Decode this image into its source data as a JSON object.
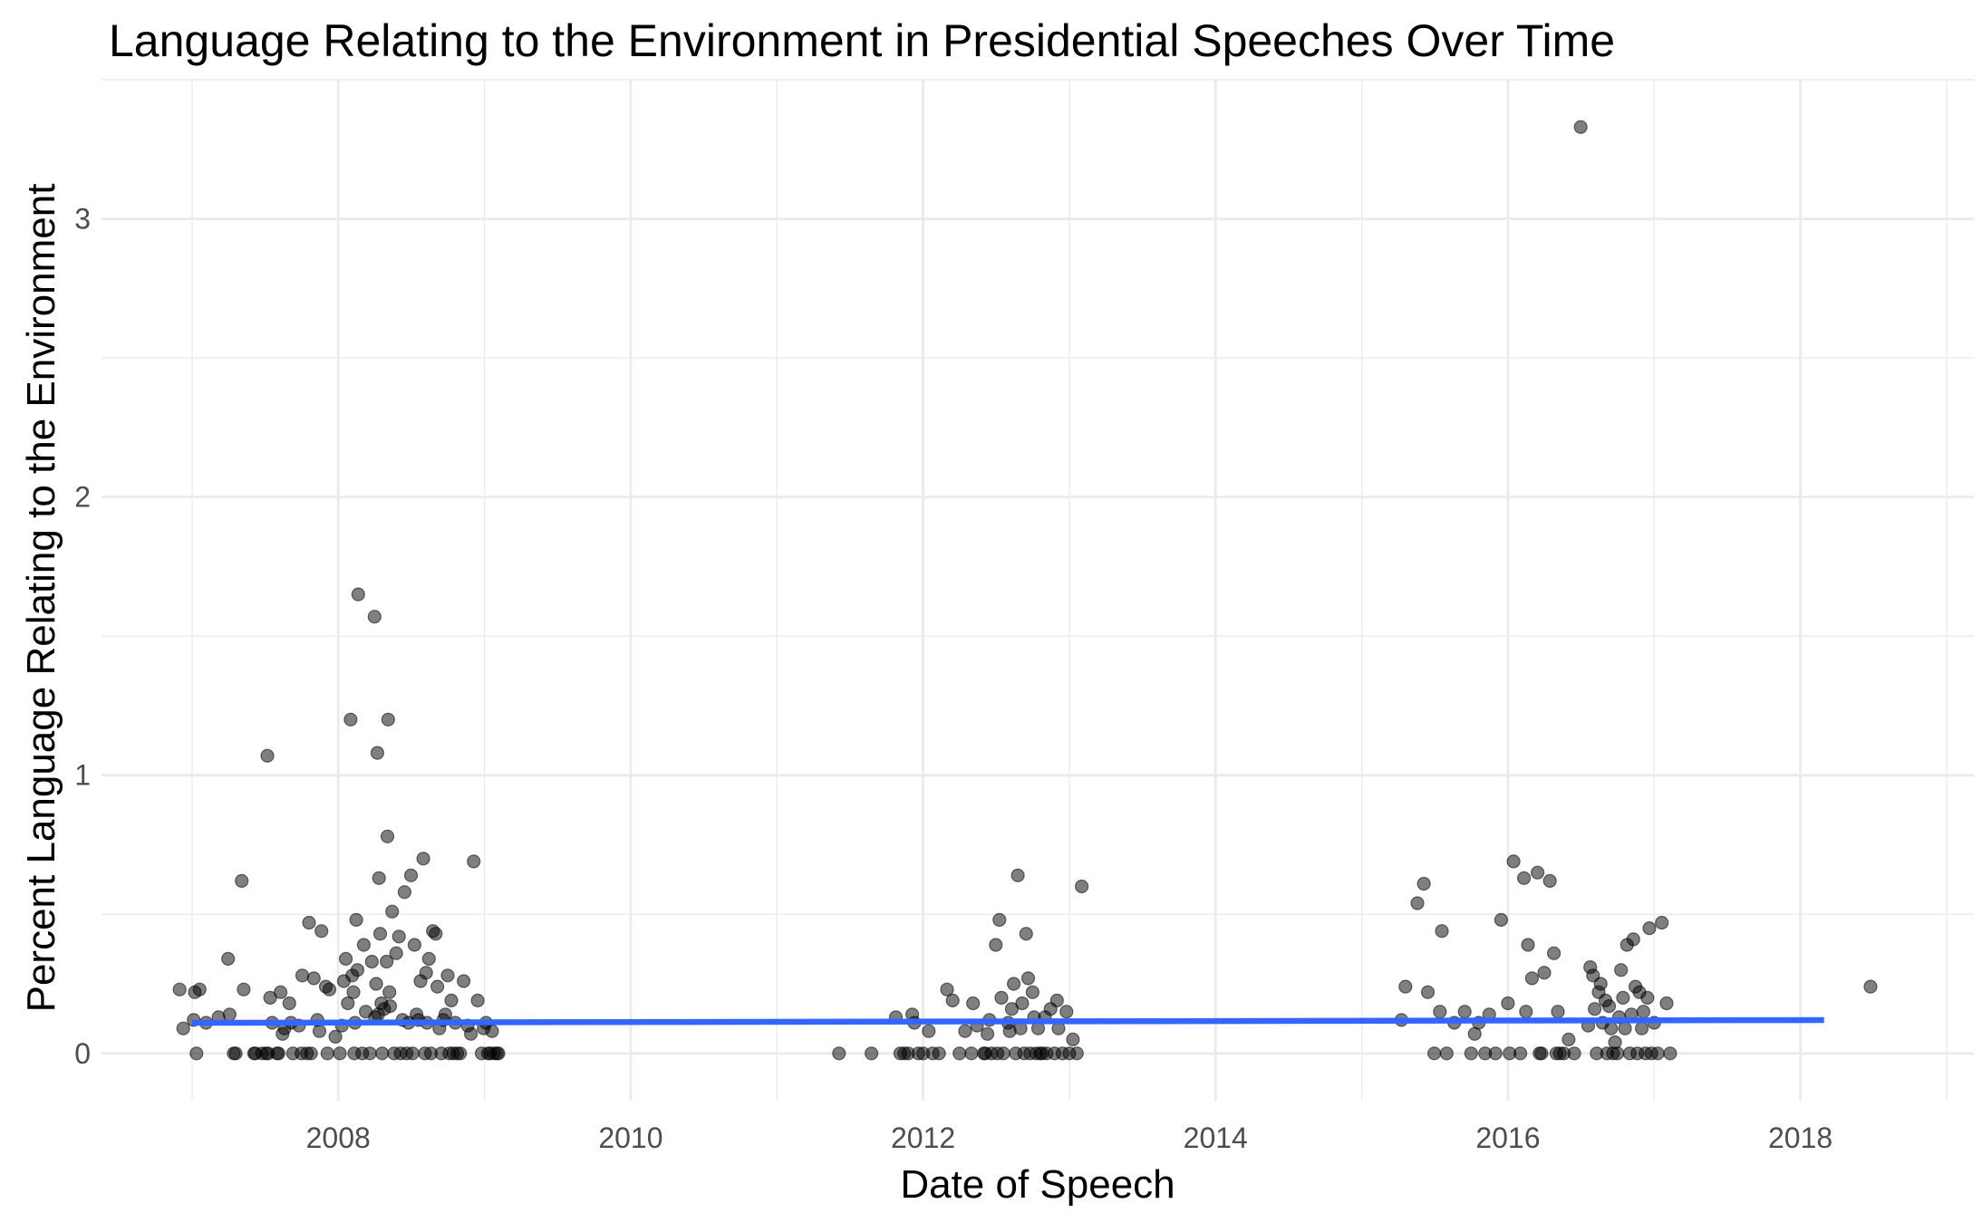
{
  "chart_data": {
    "type": "scatter",
    "title": "Language Relating to the Environment in Presidential Speeches Over Time",
    "xlabel": "Date of Speech",
    "ylabel": "Percent Language Relating to the Environment",
    "x_axis_type": "date",
    "xlim": [
      "2006-05-20",
      "2019-03-10"
    ],
    "ylim": [
      -0.17,
      3.5
    ],
    "x_ticks": [
      "2008",
      "2010",
      "2012",
      "2014",
      "2016",
      "2018"
    ],
    "y_ticks": [
      "0",
      "1",
      "2",
      "3"
    ],
    "grid": true,
    "legend": "none",
    "point_color": "#000000",
    "point_alpha": 0.5,
    "trend_color": "#3366ff",
    "trend_line": {
      "type": "linear",
      "x": [
        "2007-01-01",
        "2018-03-01"
      ],
      "y": [
        0.11,
        0.12
      ]
    },
    "series": [
      {
        "x": [
          "2006-12-01",
          "2006-12-10",
          "2007-01-05",
          "2007-01-08",
          "2007-01-12",
          "2007-01-20",
          "2007-02-05",
          "2007-03-08",
          "2007-04-01",
          "2007-04-05",
          "2007-04-15",
          "2007-04-20",
          "2007-05-05",
          "2007-05-10",
          "2007-06-05",
          "2007-06-08",
          "2007-06-25",
          "2007-07-05",
          "2007-07-08",
          "2007-07-10",
          "2007-07-15",
          "2007-07-20",
          "2007-08-01",
          "2007-08-05",
          "2007-08-10",
          "2007-08-15",
          "2007-08-20",
          "2007-09-01",
          "2007-09-05",
          "2007-09-10",
          "2007-09-25",
          "2007-10-01",
          "2007-10-03",
          "2007-10-15",
          "2007-10-20",
          "2007-10-25",
          "2007-11-01",
          "2007-11-10",
          "2007-11-15",
          "2007-11-20",
          "2007-12-01",
          "2007-12-05",
          "2007-12-10",
          "2007-12-25",
          "2008-01-05",
          "2008-01-10",
          "2008-01-15",
          "2008-01-20",
          "2008-01-25",
          "2008-02-01",
          "2008-02-05",
          "2008-02-08",
          "2008-02-10",
          "2008-02-12",
          "2008-02-15",
          "2008-02-18",
          "2008-02-20",
          "2008-03-01",
          "2008-03-05",
          "2008-03-10",
          "2008-03-20",
          "2008-03-25",
          "2008-04-01",
          "2008-04-02",
          "2008-04-05",
          "2008-04-08",
          "2008-04-10",
          "2008-04-12",
          "2008-04-15",
          "2008-04-18",
          "2008-04-20",
          "2008-04-25",
          "2008-05-01",
          "2008-05-03",
          "2008-05-05",
          "2008-05-08",
          "2008-05-10",
          "2008-05-15",
          "2008-05-20",
          "2008-05-25",
          "2008-06-01",
          "2008-06-05",
          "2008-06-10",
          "2008-06-15",
          "2008-06-20",
          "2008-06-25",
          "2008-07-01",
          "2008-07-05",
          "2008-07-10",
          "2008-07-15",
          "2008-07-20",
          "2008-07-25",
          "2008-08-01",
          "2008-08-05",
          "2008-08-08",
          "2008-08-10",
          "2008-08-15",
          "2008-08-20",
          "2008-08-25",
          "2008-09-01",
          "2008-09-05",
          "2008-09-10",
          "2008-09-15",
          "2008-09-20",
          "2008-09-25",
          "2008-10-01",
          "2008-10-05",
          "2008-10-10",
          "2008-10-15",
          "2008-10-20",
          "2008-10-25",
          "2008-11-01",
          "2008-11-10",
          "2008-11-20",
          "2008-11-28",
          "2008-12-05",
          "2008-12-15",
          "2008-12-25",
          "2008-12-30",
          "2009-01-05",
          "2009-01-10",
          "2009-01-15",
          "2009-01-20",
          "2009-01-25",
          "2009-02-01",
          "2009-02-05",
          "2011-06-05",
          "2011-08-25",
          "2011-10-25",
          "2011-11-05",
          "2011-11-15",
          "2011-11-25",
          "2011-12-05",
          "2011-12-10",
          "2011-12-20",
          "2012-01-01",
          "2012-01-15",
          "2012-01-25",
          "2012-02-10",
          "2012-03-01",
          "2012-03-15",
          "2012-04-01",
          "2012-04-15",
          "2012-05-01",
          "2012-05-05",
          "2012-05-15",
          "2012-06-01",
          "2012-06-05",
          "2012-06-10",
          "2012-06-15",
          "2012-06-20",
          "2012-07-01",
          "2012-07-05",
          "2012-07-10",
          "2012-07-15",
          "2012-07-20",
          "2012-08-01",
          "2012-08-05",
          "2012-08-10",
          "2012-08-15",
          "2012-08-20",
          "2012-08-25",
          "2012-09-01",
          "2012-09-05",
          "2012-09-10",
          "2012-09-15",
          "2012-09-20",
          "2012-09-25",
          "2012-10-01",
          "2012-10-05",
          "2012-10-10",
          "2012-10-15",
          "2012-10-20",
          "2012-10-25",
          "2012-11-01",
          "2012-11-05",
          "2012-11-15",
          "2012-11-25",
          "2012-12-01",
          "2012-12-05",
          "2012-12-15",
          "2012-12-25",
          "2013-01-01",
          "2013-01-10",
          "2013-01-20",
          "2013-02-01",
          "2015-04-10",
          "2015-04-20",
          "2015-05-20",
          "2015-06-05",
          "2015-06-15",
          "2015-07-01",
          "2015-07-15",
          "2015-07-20",
          "2015-08-01",
          "2015-08-20",
          "2015-09-15",
          "2015-10-01",
          "2015-10-10",
          "2015-10-20",
          "2015-11-05",
          "2015-11-15",
          "2015-12-01",
          "2015-12-15",
          "2016-01-01",
          "2016-01-05",
          "2016-01-15",
          "2016-02-01",
          "2016-02-10",
          "2016-02-15",
          "2016-02-20",
          "2016-03-01",
          "2016-03-15",
          "2016-03-20",
          "2016-03-25",
          "2016-04-01",
          "2016-04-15",
          "2016-04-25",
          "2016-05-01",
          "2016-05-05",
          "2016-05-10",
          "2016-05-20",
          "2016-06-01",
          "2016-06-15",
          "2016-07-01",
          "2016-07-20",
          "2016-07-25",
          "2016-08-01",
          "2016-08-05",
          "2016-08-10",
          "2016-08-15",
          "2016-08-20",
          "2016-08-25",
          "2016-09-01",
          "2016-09-05",
          "2016-09-10",
          "2016-09-15",
          "2016-09-20",
          "2016-09-25",
          "2016-10-01",
          "2016-10-05",
          "2016-10-10",
          "2016-10-15",
          "2016-10-20",
          "2016-10-25",
          "2016-11-01",
          "2016-11-05",
          "2016-11-10",
          "2016-11-15",
          "2016-11-20",
          "2016-11-25",
          "2016-12-01",
          "2016-12-05",
          "2016-12-10",
          "2016-12-15",
          "2016-12-20",
          "2016-12-25",
          "2017-01-01",
          "2017-01-10",
          "2017-01-20",
          "2017-02-01",
          "2017-02-10",
          "2018-06-25"
        ],
        "y": [
          0.23,
          0.09,
          0.12,
          0.22,
          0.0,
          0.23,
          0.11,
          0.13,
          0.34,
          0.14,
          0.0,
          0.0,
          0.62,
          0.23,
          0.0,
          0.0,
          0.0,
          0.0,
          1.07,
          0.0,
          0.2,
          0.11,
          0.0,
          0.0,
          0.22,
          0.07,
          0.09,
          0.18,
          0.11,
          0.0,
          0.1,
          0.0,
          0.28,
          0.0,
          0.47,
          0.0,
          0.27,
          0.12,
          0.08,
          0.44,
          0.24,
          0.0,
          0.23,
          0.06,
          0.0,
          0.1,
          0.26,
          0.34,
          0.18,
          1.2,
          0.28,
          0.22,
          0.0,
          0.11,
          0.48,
          0.3,
          1.65,
          0.0,
          0.39,
          0.15,
          0.0,
          0.33,
          1.57,
          0.13,
          0.25,
          1.08,
          0.14,
          0.63,
          0.43,
          0.18,
          0.0,
          0.16,
          0.33,
          0.78,
          1.2,
          0.22,
          0.17,
          0.51,
          0.0,
          0.36,
          0.42,
          0.0,
          0.12,
          0.58,
          0.0,
          0.11,
          0.64,
          0.0,
          0.39,
          0.14,
          0.12,
          0.26,
          0.7,
          0.0,
          0.29,
          0.11,
          0.34,
          0.0,
          0.44,
          0.43,
          0.24,
          0.09,
          0.0,
          0.12,
          0.14,
          0.28,
          0.0,
          0.19,
          0.0,
          0.11,
          0.0,
          0.0,
          0.26,
          0.1,
          0.07,
          0.69,
          0.19,
          0.0,
          0.09,
          0.11,
          0.0,
          0.0,
          0.08,
          0.0,
          0.0,
          0.0,
          0.0,
          0.0,
          0.13,
          0.0,
          0.0,
          0.0,
          0.14,
          0.11,
          0.0,
          0.0,
          0.08,
          0.0,
          0.0,
          0.23,
          0.19,
          0.0,
          0.08,
          0.0,
          0.18,
          0.1,
          0.0,
          0.0,
          0.07,
          0.12,
          0.0,
          0.39,
          0.0,
          0.48,
          0.2,
          0.0,
          0.11,
          0.08,
          0.16,
          0.25,
          0.0,
          0.64,
          0.09,
          0.18,
          0.0,
          0.43,
          0.27,
          0.0,
          0.22,
          0.13,
          0.0,
          0.09,
          0.0,
          0.0,
          0.13,
          0.0,
          0.16,
          0.0,
          0.19,
          0.09,
          0.0,
          0.15,
          0.0,
          0.05,
          0.0,
          0.6,
          0.12,
          0.24,
          0.54,
          0.61,
          0.22,
          0.0,
          0.15,
          0.44,
          0.0,
          0.11,
          0.15,
          0.0,
          0.07,
          0.11,
          0.0,
          0.14,
          0.0,
          0.48,
          0.18,
          0.0,
          0.69,
          0.0,
          0.63,
          0.15,
          0.39,
          0.27,
          0.65,
          0.0,
          0.0,
          0.29,
          0.62,
          0.36,
          0.0,
          0.15,
          0.0,
          0.0,
          0.05,
          0.0,
          3.33,
          0.1,
          0.31,
          0.28,
          0.16,
          0.0,
          0.22,
          0.25,
          0.11,
          0.19,
          0.0,
          0.17,
          0.09,
          0.0,
          0.04,
          0.0,
          0.13,
          0.3,
          0.2,
          0.09,
          0.39,
          0.0,
          0.14,
          0.41,
          0.24,
          0.0,
          0.22,
          0.09,
          0.15,
          0.0,
          0.2,
          0.45,
          0.0,
          0.11,
          0.0,
          0.47,
          0.18,
          0.0,
          0.24
        ]
      }
    ]
  }
}
